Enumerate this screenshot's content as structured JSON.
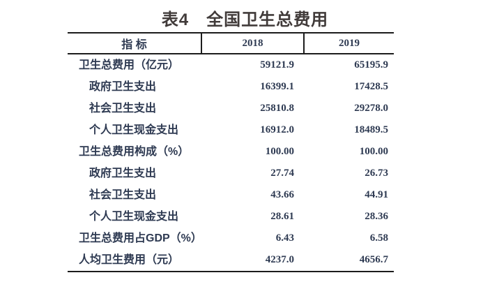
{
  "title": "表4　全国卫生总费用",
  "table": {
    "header": {
      "indicator": "指 标",
      "col2018": "2018",
      "col2019": "2019"
    },
    "rows": [
      {
        "label": "卫生总费用（亿元）",
        "v2018": "59121.9",
        "v2019": "65195.9",
        "level": 1
      },
      {
        "label": "政府卫生支出",
        "v2018": "16399.1",
        "v2019": "17428.5",
        "level": 2
      },
      {
        "label": "社会卫生支出",
        "v2018": "25810.8",
        "v2019": "29278.0",
        "level": 2
      },
      {
        "label": "个人卫生现金支出",
        "v2018": "16912.0",
        "v2019": "18489.5",
        "level": 2
      },
      {
        "label": "卫生总费用构成（%）",
        "v2018": "100.00",
        "v2019": "100.00",
        "level": 1
      },
      {
        "label": "政府卫生支出",
        "v2018": "27.74",
        "v2019": "26.73",
        "level": 2
      },
      {
        "label": "社会卫生支出",
        "v2018": "43.66",
        "v2019": "44.91",
        "level": 2
      },
      {
        "label": "个人卫生现金支出",
        "v2018": "28.61",
        "v2019": "28.36",
        "level": 2
      },
      {
        "label": "卫生总费用占GDP（%）",
        "v2018": "6.43",
        "v2019": "6.58",
        "level": 1
      },
      {
        "label": "人均卫生费用（元）",
        "v2018": "4237.0",
        "v2019": "4656.7",
        "level": 1
      }
    ]
  },
  "colors": {
    "title": "#413b3a",
    "text": "#2e3a52",
    "border": "#1c1c1c",
    "background": "#ffffff"
  }
}
